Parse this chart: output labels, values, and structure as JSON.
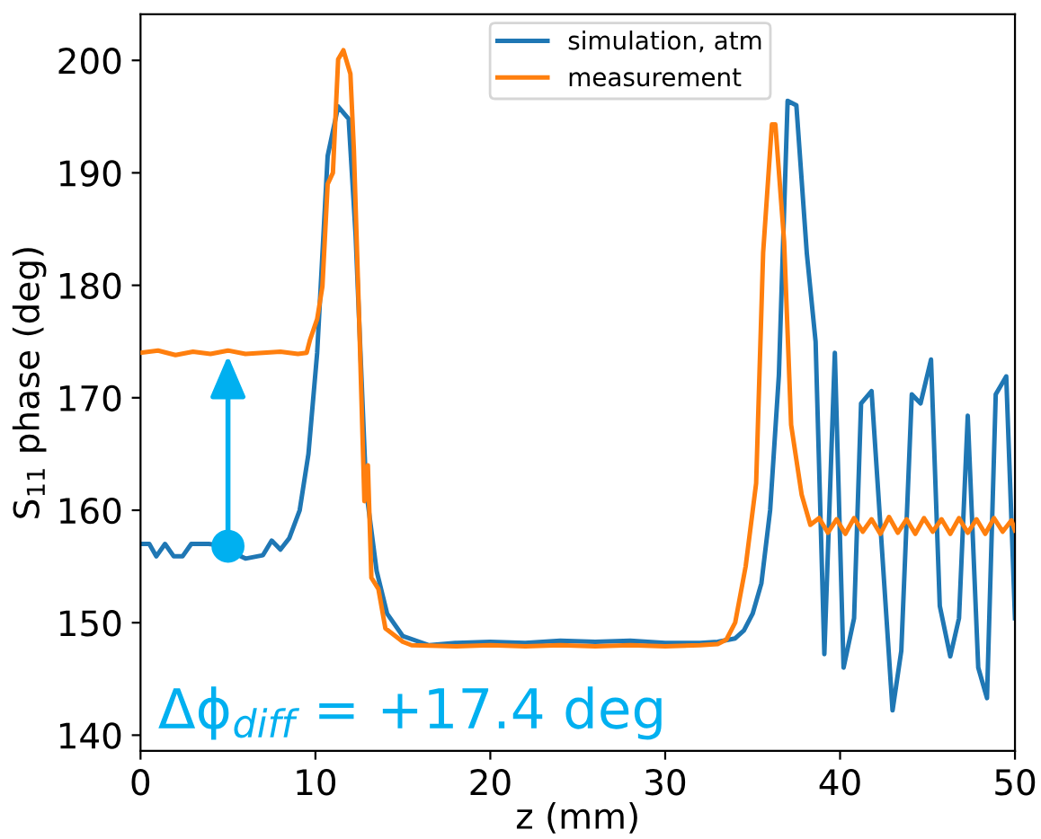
{
  "chart_data": {
    "type": "line",
    "xlabel": "z (mm)",
    "ylabel": "S$_{11}$ phase (deg)",
    "xlim": [
      0,
      50
    ],
    "ylim": [
      138.6,
      204.1
    ],
    "xticks": [
      0,
      10,
      20,
      30,
      40,
      50
    ],
    "yticks": [
      140,
      150,
      160,
      170,
      180,
      190,
      200
    ],
    "grid": false,
    "legend": "top",
    "line_style": "solid",
    "marker": "none",
    "series": [
      {
        "name": "simulation, atm",
        "color": "#1f77b4",
        "x": [
          0,
          0.5,
          0.9,
          1.4,
          1.9,
          2.4,
          2.9,
          3.9,
          4.4,
          6,
          7,
          7.5,
          8,
          8.5,
          9.1,
          9.6,
          10.1,
          10.7,
          11.3,
          11.9,
          12.3,
          12.9,
          13.5,
          14.1,
          15,
          16.5,
          18,
          20,
          22,
          24,
          26,
          28,
          30,
          32,
          33,
          34,
          34.5,
          35,
          35.5,
          36,
          36.5,
          37,
          37.5,
          38.1,
          38.6,
          39.1,
          39.7,
          40.2,
          40.8,
          41.2,
          41.8,
          43,
          43.5,
          44.1,
          44.6,
          45.2,
          45.7,
          46.3,
          46.8,
          47.3,
          47.9,
          48.4,
          48.9,
          49.5,
          50
        ],
        "values": [
          157,
          157,
          155.9,
          157,
          155.9,
          155.9,
          157,
          157,
          156.9,
          155.7,
          156,
          157.3,
          156.5,
          157.5,
          160,
          165,
          174,
          191.5,
          195.9,
          194.8,
          184.4,
          161.8,
          154.6,
          150.8,
          148.8,
          148,
          148.2,
          148.3,
          148.2,
          148.4,
          148.3,
          148.4,
          148.2,
          148.2,
          148.3,
          148.6,
          149.3,
          150.8,
          153.5,
          160,
          172,
          196.4,
          196,
          182.8,
          175,
          147.2,
          174,
          146,
          150.4,
          169.5,
          170.6,
          142.2,
          147.5,
          170.3,
          169.5,
          173.4,
          151.5,
          147,
          150.4,
          168.4,
          146,
          143.3,
          170.3,
          171.9,
          150.4
        ]
      },
      {
        "name": "measurement",
        "color": "#ff7f0e",
        "x": [
          0,
          1,
          2,
          3,
          4,
          5,
          6,
          7,
          8,
          9,
          9.5,
          9.7,
          10.1,
          10.4,
          10.7,
          11,
          11.3,
          11.6,
          12,
          12.2,
          12.5,
          12.8,
          13,
          13.2,
          13.6,
          14,
          15,
          15.5,
          18,
          20,
          22,
          24,
          26,
          28,
          30,
          32,
          33,
          33.5,
          34,
          34.6,
          35.2,
          35.6,
          36.1,
          36.3,
          36.8,
          37.2,
          37.8,
          38.3,
          38.8,
          39.3,
          39.8,
          40.3,
          40.8,
          41.3,
          41.8,
          42.3,
          42.8,
          43.3,
          43.8,
          44.3,
          44.8,
          45.3,
          45.8,
          46.3,
          46.8,
          47.3,
          47.8,
          48.3,
          48.8,
          49.3,
          49.8,
          50
        ],
        "values": [
          174,
          174.2,
          173.8,
          174.1,
          173.9,
          174.2,
          173.9,
          174,
          174.1,
          173.9,
          174,
          175.2,
          177,
          179.9,
          189,
          190,
          200.1,
          200.9,
          198.8,
          192,
          177,
          160.8,
          164,
          154,
          153,
          149.5,
          148.3,
          148,
          147.9,
          148,
          147.9,
          148,
          147.9,
          148,
          147.9,
          148,
          148.1,
          148.5,
          150,
          155,
          162.4,
          182.9,
          194.3,
          194.3,
          183.9,
          167.6,
          161.4,
          158.7,
          159.3,
          158,
          159.2,
          157.9,
          159.3,
          158.1,
          159.2,
          157.9,
          159.4,
          158,
          159.2,
          157.9,
          159.3,
          158.1,
          159.2,
          157.9,
          159.3,
          158,
          159.2,
          157.9,
          159.3,
          158.1,
          159.1,
          158.2
        ]
      },
      {
        "type": "scatter",
        "color": "#00b0f0",
        "x": [
          5
        ],
        "values": [
          156.8
        ],
        "marker": "circle"
      }
    ],
    "annotations": [
      "Δϕ$_{diff}$ = +17.4 deg"
    ]
  }
}
